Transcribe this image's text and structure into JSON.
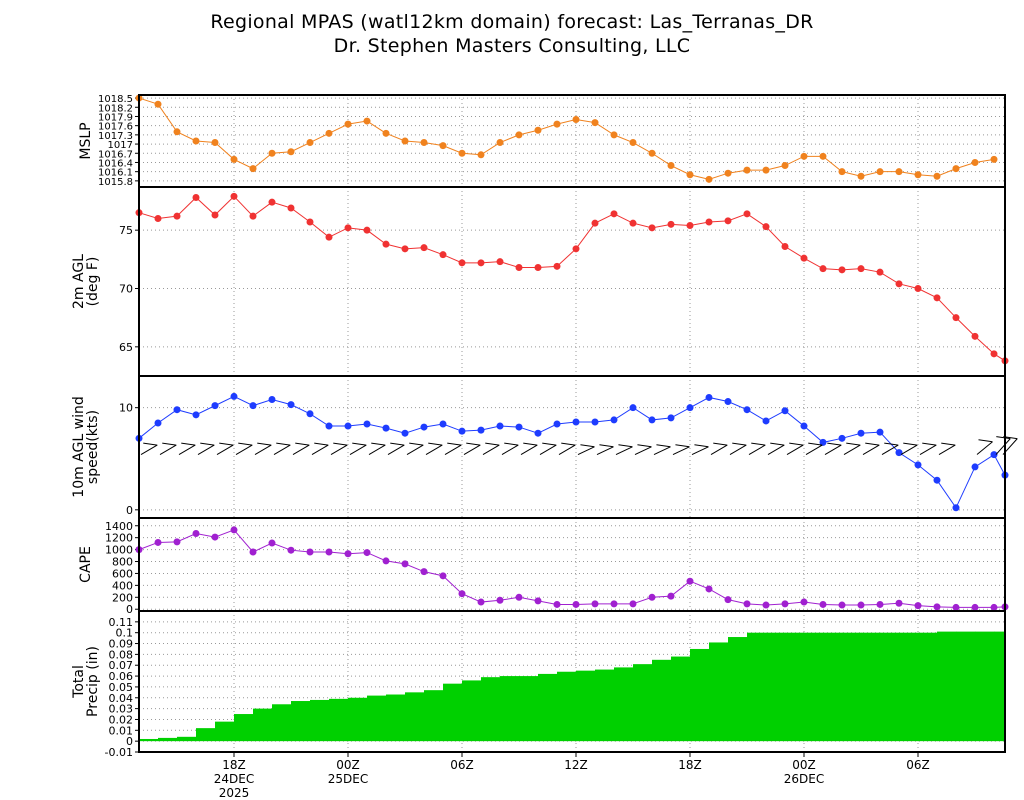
{
  "title": "Regional MPAS (watl12km domain) forecast: Las_Terranas_DR",
  "subtitle": "Dr. Stephen Masters Consulting, LLC",
  "colors": {
    "mslp": "#f0821e",
    "temp": "#f03232",
    "wind": "#1e3cff",
    "cape": "#a020d0",
    "precip": "#00d000"
  },
  "x_axis": {
    "start_hour": 0,
    "end_hour": 45,
    "ticks": [
      {
        "hour": 5,
        "label": "18Z",
        "date": "24DEC",
        "year": "2025"
      },
      {
        "hour": 11,
        "label": "00Z",
        "date": "25DEC",
        "year": ""
      },
      {
        "hour": 17,
        "label": "06Z",
        "date": "",
        "year": ""
      },
      {
        "hour": 23,
        "label": "12Z",
        "date": "",
        "year": ""
      },
      {
        "hour": 29,
        "label": "18Z",
        "date": "",
        "year": ""
      },
      {
        "hour": 35,
        "label": "00Z",
        "date": "26DEC",
        "year": ""
      },
      {
        "hour": 41,
        "label": "06Z",
        "date": "",
        "year": ""
      }
    ]
  },
  "chart_data": [
    {
      "type": "line",
      "ylabel": [
        "MSLP"
      ],
      "ylim": [
        15.6,
        18.6
      ],
      "yticks": [
        "1015.8",
        "1016.1",
        "1016.4",
        "1016.7",
        "1017",
        "1017.3",
        "1017.6",
        "1017.9",
        "1018.2",
        "1018.5"
      ],
      "ytick_values": [
        15.8,
        16.1,
        16.4,
        16.7,
        17.0,
        17.3,
        17.6,
        17.9,
        18.2,
        18.5
      ],
      "x": [
        0,
        1,
        2,
        3,
        4,
        5,
        6,
        7,
        8,
        9,
        10,
        11,
        12,
        13,
        14,
        15,
        16,
        17,
        18,
        19,
        20,
        21,
        22,
        23,
        24,
        25,
        26,
        27,
        28,
        29,
        30,
        31,
        32,
        33,
        34,
        35,
        36,
        37,
        38,
        39,
        40,
        41,
        42,
        43,
        44,
        45
      ],
      "values": [
        18.5,
        18.3,
        17.4,
        17.1,
        17.05,
        16.5,
        16.2,
        16.7,
        16.75,
        17.05,
        17.35,
        17.65,
        17.75,
        17.35,
        17.1,
        17.05,
        16.95,
        16.7,
        16.65,
        17.05,
        17.3,
        17.45,
        17.65,
        17.8,
        17.7,
        17.3,
        17.05,
        16.7,
        16.3,
        16.0,
        15.85,
        16.05,
        16.15,
        16.15,
        16.3,
        16.6,
        16.6,
        16.1,
        15.95,
        16.1,
        16.1,
        16.0,
        15.95,
        16.2,
        16.4,
        16.5
      ]
    },
    {
      "type": "line",
      "ylabel": [
        "2m AGL",
        "(deg F)"
      ],
      "ylim": [
        62.5,
        78.7
      ],
      "yticks": [
        "65",
        "70",
        "75"
      ],
      "ytick_values": [
        65,
        70,
        75
      ],
      "x": [
        0,
        1,
        2,
        3,
        4,
        5,
        6,
        7,
        8,
        9,
        10,
        11,
        12,
        13,
        14,
        15,
        16,
        17,
        18,
        19,
        20,
        21,
        22,
        23,
        24,
        25,
        26,
        27,
        28,
        29,
        30,
        31,
        32,
        33,
        34,
        35,
        36,
        37,
        38,
        39,
        40,
        41,
        42,
        43,
        44,
        45,
        46
      ],
      "values": [
        76.5,
        76.0,
        76.2,
        77.8,
        76.3,
        77.9,
        76.2,
        77.4,
        76.9,
        75.7,
        74.4,
        75.2,
        75.0,
        73.8,
        73.4,
        73.5,
        72.9,
        72.2,
        72.2,
        72.3,
        71.8,
        71.8,
        71.9,
        73.4,
        75.6,
        76.4,
        75.6,
        75.2,
        75.5,
        75.4,
        75.7,
        75.8,
        76.4,
        75.3,
        73.6,
        72.6,
        71.7,
        71.6,
        71.7,
        71.4,
        70.4,
        70.0,
        69.2,
        67.5,
        65.9,
        64.4,
        63.8
      ]
    },
    {
      "type": "line",
      "ylabel": [
        "10m AGL wind",
        "speed(kts)"
      ],
      "ylim": [
        -0.8,
        13.1
      ],
      "yticks": [
        "0",
        "10"
      ],
      "ytick_values": [
        0,
        10
      ],
      "x": [
        0,
        1,
        2,
        3,
        4,
        5,
        6,
        7,
        8,
        9,
        10,
        11,
        12,
        13,
        14,
        15,
        16,
        17,
        18,
        19,
        20,
        21,
        22,
        23,
        24,
        25,
        26,
        27,
        28,
        29,
        30,
        31,
        32,
        33,
        34,
        35,
        36,
        37,
        38,
        39,
        40,
        41,
        42,
        43,
        44,
        45,
        46
      ],
      "values": [
        7.0,
        8.5,
        9.8,
        9.3,
        10.2,
        11.1,
        10.2,
        10.8,
        10.3,
        9.4,
        8.2,
        8.2,
        8.4,
        8.0,
        7.5,
        8.1,
        8.4,
        7.7,
        7.8,
        8.2,
        8.1,
        7.5,
        8.4,
        8.6,
        8.6,
        8.8,
        10.0,
        8.8,
        9.0,
        10.0,
        11.0,
        10.6,
        9.8,
        8.7,
        9.7,
        8.2,
        6.6,
        7.0,
        7.5,
        7.6,
        5.6,
        4.4,
        2.9,
        0.2,
        4.2,
        5.4,
        3.4
      ],
      "barb_hours": [
        0,
        1,
        2,
        3,
        4,
        5,
        6,
        7,
        8,
        9,
        10,
        11,
        12,
        13,
        14,
        15,
        16,
        17,
        18,
        19,
        20,
        21,
        22,
        23,
        24,
        25,
        26,
        27,
        28,
        29,
        30,
        31,
        32,
        33,
        34,
        35,
        36,
        37,
        38,
        39,
        40,
        41,
        42,
        43,
        44,
        45,
        46
      ],
      "barb_speed": [
        7,
        8,
        10,
        9,
        10,
        11,
        10,
        11,
        10,
        9,
        8,
        8,
        8,
        8,
        7,
        8,
        8,
        8,
        8,
        8,
        8,
        7,
        8,
        9,
        9,
        9,
        10,
        9,
        9,
        10,
        11,
        11,
        10,
        9,
        10,
        8,
        7,
        7,
        8,
        8,
        6,
        4,
        3,
        0,
        4,
        5,
        3
      ],
      "barb_dir_deg": [
        80,
        80,
        80,
        80,
        80,
        80,
        80,
        80,
        80,
        80,
        80,
        80,
        80,
        80,
        80,
        80,
        80,
        80,
        80,
        80,
        80,
        80,
        80,
        85,
        85,
        85,
        85,
        85,
        85,
        85,
        80,
        80,
        80,
        80,
        80,
        80,
        80,
        80,
        80,
        80,
        80,
        80,
        80,
        0,
        70,
        60,
        60
      ]
    },
    {
      "type": "line",
      "ylabel": [
        "CAPE"
      ],
      "ylim": [
        -30,
        1530
      ],
      "yticks": [
        "0",
        "200",
        "400",
        "600",
        "800",
        "1000",
        "1200",
        "1400"
      ],
      "ytick_values": [
        0,
        200,
        400,
        600,
        800,
        1000,
        1200,
        1400
      ],
      "x": [
        0,
        1,
        2,
        3,
        4,
        5,
        6,
        7,
        8,
        9,
        10,
        11,
        12,
        13,
        14,
        15,
        16,
        17,
        18,
        19,
        20,
        21,
        22,
        23,
        24,
        25,
        26,
        27,
        28,
        29,
        30,
        31,
        32,
        33,
        34,
        35,
        36,
        37,
        38,
        39,
        40,
        41,
        42,
        43,
        44,
        45,
        46
      ],
      "values": [
        1000,
        1120,
        1130,
        1270,
        1210,
        1330,
        960,
        1110,
        990,
        960,
        960,
        930,
        950,
        810,
        760,
        630,
        560,
        260,
        120,
        150,
        200,
        140,
        80,
        80,
        90,
        90,
        90,
        200,
        220,
        470,
        340,
        160,
        90,
        70,
        90,
        120,
        80,
        70,
        70,
        80,
        100,
        60,
        40,
        30,
        30,
        30,
        40
      ]
    },
    {
      "type": "area",
      "ylabel": [
        "Total",
        "Precip (in)"
      ],
      "ylim": [
        -0.01,
        0.12
      ],
      "yticks": [
        "-0.01",
        "0",
        "0.01",
        "0.02",
        "0.03",
        "0.04",
        "0.05",
        "0.06",
        "0.07",
        "0.08",
        "0.09",
        "0.1",
        "0.11"
      ],
      "ytick_values": [
        -0.01,
        0,
        0.01,
        0.02,
        0.03,
        0.04,
        0.05,
        0.06,
        0.07,
        0.08,
        0.09,
        0.1,
        0.11
      ],
      "x": [
        0,
        1,
        2,
        3,
        4,
        5,
        6,
        7,
        8,
        9,
        10,
        11,
        12,
        13,
        14,
        15,
        16,
        17,
        18,
        19,
        20,
        21,
        22,
        23,
        24,
        25,
        26,
        27,
        28,
        29,
        30,
        31,
        32,
        33,
        34,
        35,
        36,
        37,
        38,
        39,
        40,
        41,
        42,
        43,
        44,
        45
      ],
      "values": [
        0.002,
        0.003,
        0.004,
        0.012,
        0.018,
        0.025,
        0.03,
        0.034,
        0.037,
        0.038,
        0.039,
        0.04,
        0.042,
        0.043,
        0.045,
        0.047,
        0.053,
        0.056,
        0.059,
        0.06,
        0.06,
        0.062,
        0.064,
        0.065,
        0.066,
        0.068,
        0.071,
        0.075,
        0.078,
        0.085,
        0.091,
        0.096,
        0.1,
        0.1,
        0.1,
        0.1,
        0.1,
        0.1,
        0.1,
        0.1,
        0.1,
        0.1,
        0.101,
        0.101,
        0.101,
        0.101
      ]
    }
  ]
}
